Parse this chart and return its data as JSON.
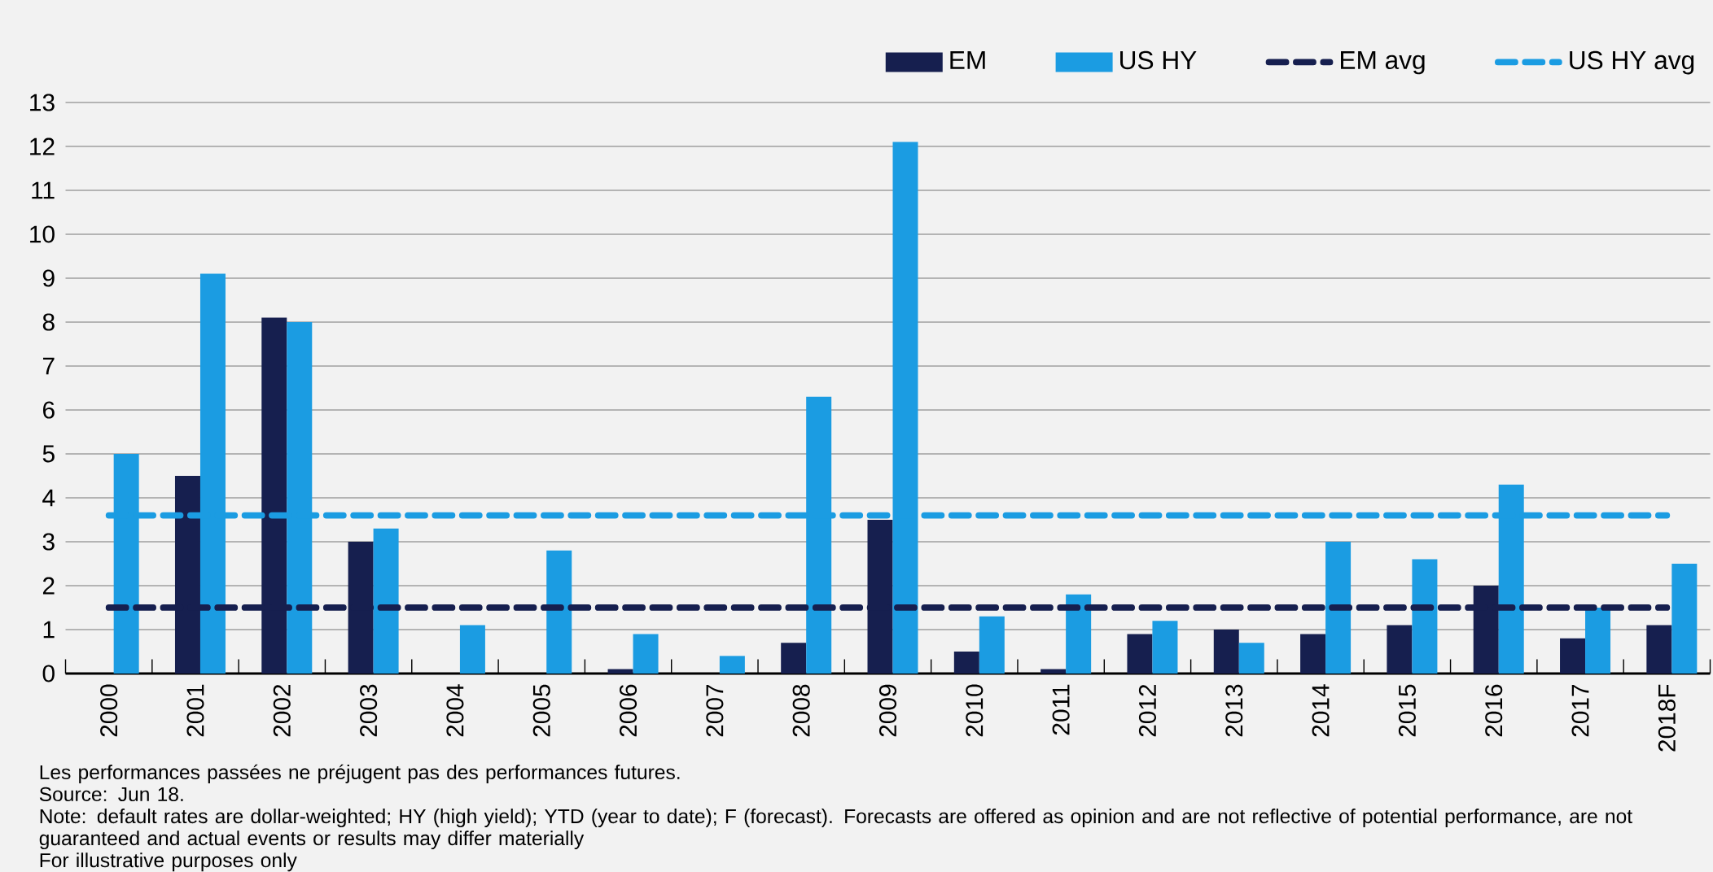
{
  "chart_data": {
    "type": "bar",
    "categories": [
      "2000",
      "2001",
      "2002",
      "2003",
      "2004",
      "2005",
      "2006",
      "2007",
      "2008",
      "2009",
      "2010",
      "2011",
      "2012",
      "2013",
      "2014",
      "2015",
      "2016",
      "2017",
      "2018F"
    ],
    "series": [
      {
        "name": "EM",
        "color": "#161f4f",
        "values": [
          0,
          4.5,
          8.1,
          3.0,
          0,
          0,
          0.1,
          0,
          0.7,
          3.5,
          0.5,
          0.1,
          0.9,
          1.0,
          0.9,
          1.1,
          2.0,
          0.8,
          1.1
        ]
      },
      {
        "name": "US HY",
        "color": "#1b9ce2",
        "values": [
          5.0,
          9.1,
          8.0,
          3.3,
          1.1,
          2.8,
          0.9,
          0.4,
          6.3,
          12.1,
          1.3,
          1.8,
          1.2,
          0.7,
          3.0,
          2.6,
          4.3,
          1.5,
          2.5
        ]
      },
      {
        "name": "EM avg",
        "type": "line",
        "line_style": "dashed",
        "color": "#161f4f",
        "values": [
          1.5,
          1.5,
          1.5,
          1.5,
          1.5,
          1.5,
          1.5,
          1.5,
          1.5,
          1.5,
          1.5,
          1.5,
          1.5,
          1.5,
          1.5,
          1.5,
          1.5,
          1.5,
          1.5
        ]
      },
      {
        "name": "US HY avg",
        "type": "line",
        "line_style": "dashed",
        "color": "#1b9ce2",
        "values": [
          3.6,
          3.6,
          3.6,
          3.6,
          3.6,
          3.6,
          3.6,
          3.6,
          3.6,
          3.6,
          3.6,
          3.6,
          3.6,
          3.6,
          3.6,
          3.6,
          3.6,
          3.6,
          3.6
        ]
      }
    ],
    "ylim": [
      0,
      13
    ],
    "yticks": [
      0,
      1,
      2,
      3,
      4,
      5,
      6,
      7,
      8,
      9,
      10,
      11,
      12,
      13
    ],
    "grid": "y",
    "legend": "top right",
    "annotations": [
      "Les performances passées ne préjugent pas des performances futures.",
      "Source: Jun 18.",
      "Note: default rates are dollar-weighted; HY (high yield);  YTD (year to date); F (forecast). Forecasts are offered as opinion and are not reflective of potential performance, are not guaranteed and actual events or results may differ materially",
      "For illustrative purposes only"
    ]
  }
}
